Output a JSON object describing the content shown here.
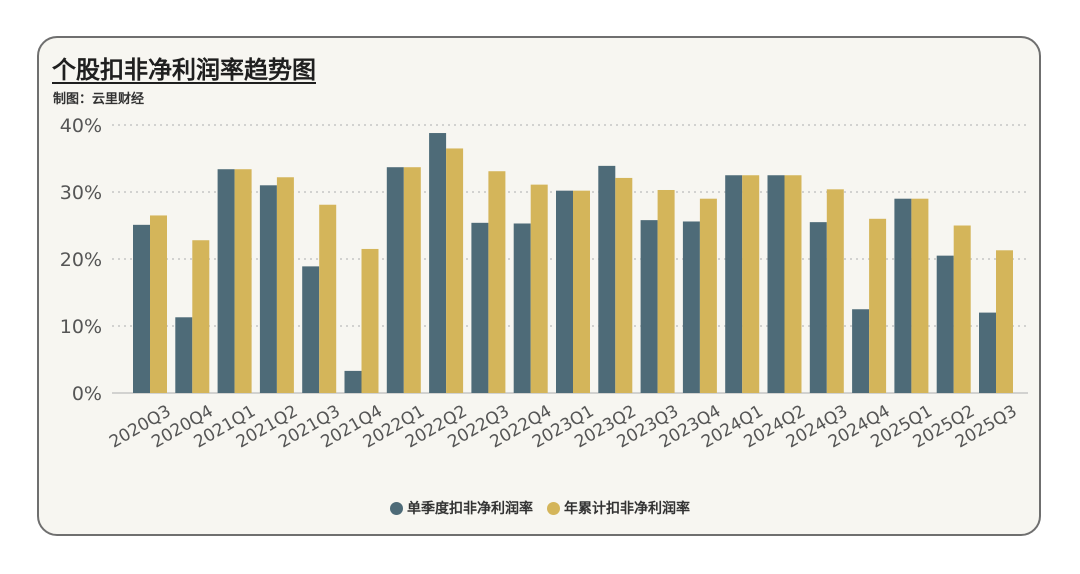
{
  "header": {
    "title": "个股扣非净利润率趋势图",
    "source": "制图：云里财经"
  },
  "colors": {
    "single_quarter": "#4e6b78",
    "year_cumulative": "#d4b55a",
    "grid": "#bdbdbd",
    "axis_text": "#555555"
  },
  "chart_data": {
    "type": "bar",
    "title": "个股扣非净利润率趋势图",
    "xlabel": "",
    "ylabel": "",
    "ylim": [
      0,
      40
    ],
    "yticks": [
      0,
      10,
      20,
      30,
      40
    ],
    "ytick_labels": [
      "0%",
      "10%",
      "20%",
      "30%",
      "40%"
    ],
    "grid": true,
    "legend": "bottom",
    "categories": [
      "2020Q3",
      "2020Q4",
      "2021Q1",
      "2021Q2",
      "2021Q3",
      "2021Q4",
      "2022Q1",
      "2022Q2",
      "2022Q3",
      "2022Q4",
      "2023Q1",
      "2023Q2",
      "2023Q3",
      "2023Q4",
      "2024Q1",
      "2024Q2",
      "2024Q3",
      "2024Q4",
      "2025Q1",
      "2025Q2",
      "2025Q3"
    ],
    "series": [
      {
        "name": "单季度扣非净利润率",
        "values": [
          25.1,
          11.3,
          33.4,
          31.0,
          18.9,
          3.3,
          33.7,
          38.8,
          25.4,
          25.3,
          30.2,
          33.9,
          25.8,
          25.6,
          32.5,
          32.5,
          25.5,
          12.5,
          29.0,
          20.5,
          12.0
        ]
      },
      {
        "name": "年累计扣非净利润率",
        "values": [
          26.5,
          22.8,
          33.4,
          32.2,
          28.1,
          21.5,
          33.7,
          36.5,
          33.1,
          31.1,
          30.2,
          32.1,
          30.3,
          29.0,
          32.5,
          32.5,
          30.4,
          26.0,
          29.0,
          25.0,
          21.3
        ]
      }
    ]
  }
}
